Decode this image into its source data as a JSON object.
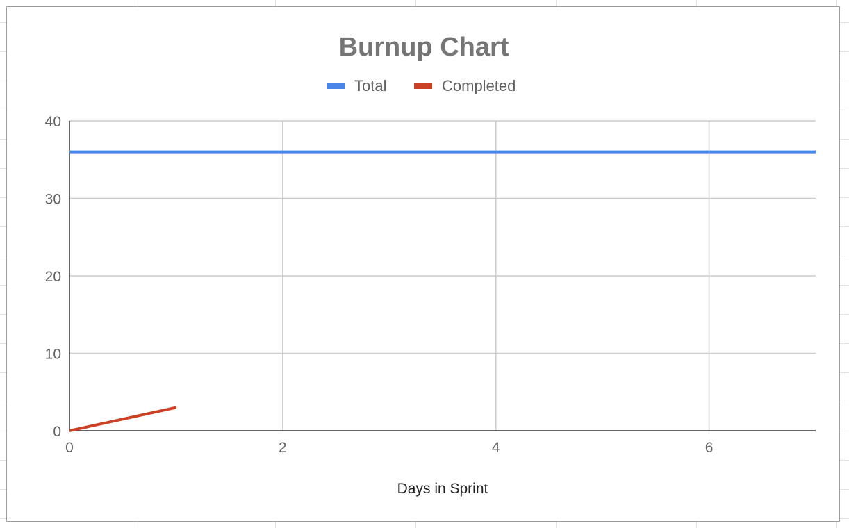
{
  "chart_data": {
    "type": "line",
    "title": "Burnup Chart",
    "xlabel": "Days in Sprint",
    "ylabel": "",
    "xlim": [
      0,
      7
    ],
    "ylim": [
      0,
      40
    ],
    "x_ticks": [
      "0",
      "2",
      "4",
      "6"
    ],
    "y_ticks": [
      "0",
      "10",
      "20",
      "30",
      "40"
    ],
    "grid": true,
    "legend_position": "top",
    "series": [
      {
        "name": "Total",
        "color": "#4a86e8",
        "x": [
          0,
          1,
          2,
          3,
          4,
          5,
          6,
          7
        ],
        "values": [
          36,
          36,
          36,
          36,
          36,
          36,
          36,
          36
        ]
      },
      {
        "name": "Completed",
        "color": "#cc4125",
        "x": [
          0,
          1
        ],
        "values": [
          0,
          3
        ]
      }
    ]
  }
}
